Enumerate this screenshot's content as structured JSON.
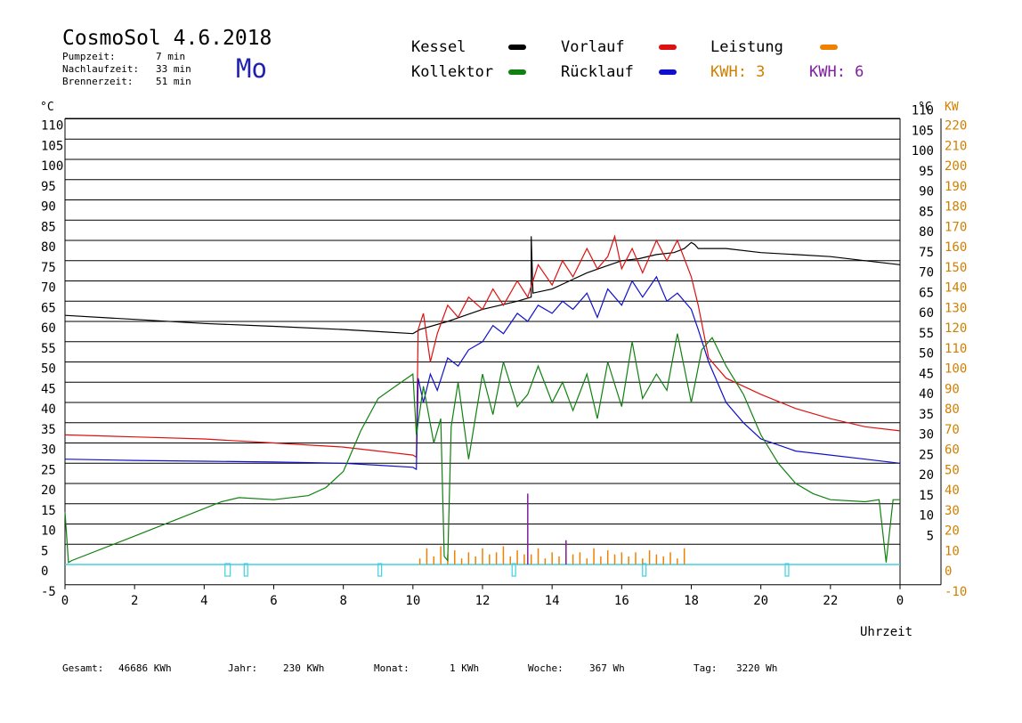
{
  "header": {
    "title": "CosmoSol 4.6.2018",
    "day": "Mo",
    "pump_label": "Pumpzeit:",
    "pump_value": "7 min",
    "nachlauf_label": "Nachlaufzeit:",
    "nachlauf_value": "33 min",
    "brenner_label": "Brennerzeit:",
    "brenner_value": "51 min"
  },
  "legend": {
    "kessel": "Kessel",
    "vorlauf": "Vorlauf",
    "leistung": "Leistung",
    "kollektor": "Kollektor",
    "ruecklauf": "Rücklauf",
    "kwh1": "KWH: 3",
    "kwh2": "KWH: 6",
    "colors": {
      "kessel": "#000000",
      "vorlauf": "#dd1111",
      "leistung": "#f08000",
      "kollektor": "#108010",
      "ruecklauf": "#1010cc",
      "kwh1": "#d08000",
      "kwh2": "#8020a0",
      "pump": "#40d0e0"
    }
  },
  "chart_data": {
    "type": "line",
    "title": "CosmoSol 4.6.2018",
    "xlabel": "Uhrzeit",
    "ylabel_left": "°C",
    "ylabel_right_1": "°C",
    "ylabel_right_2": "KW",
    "xlim": [
      0,
      24
    ],
    "ylim": [
      -5,
      110
    ],
    "x_ticks": [
      "0",
      "2",
      "4",
      "6",
      "8",
      "10",
      "12",
      "14",
      "16",
      "18",
      "20",
      "22",
      "0"
    ],
    "y_ticks_left": [
      "-5",
      "0",
      "5",
      "10",
      "15",
      "20",
      "25",
      "30",
      "35",
      "40",
      "45",
      "50",
      "55",
      "60",
      "65",
      "70",
      "75",
      "80",
      "85",
      "90",
      "95",
      "100",
      "105",
      "110"
    ],
    "y_ticks_right": [
      "5",
      "10",
      "15",
      "20",
      "25",
      "30",
      "35",
      "40",
      "45",
      "50",
      "55",
      "60",
      "65",
      "70",
      "75",
      "80",
      "85",
      "90",
      "95",
      "100",
      "105",
      "110"
    ],
    "y_ticks_kw": [
      "-10",
      "0",
      "10",
      "20",
      "30",
      "40",
      "50",
      "60",
      "70",
      "80",
      "90",
      "100",
      "110",
      "120",
      "130",
      "140",
      "150",
      "160",
      "170",
      "180",
      "190",
      "200",
      "210",
      "220"
    ],
    "grid": true,
    "series": [
      {
        "name": "Kessel",
        "color": "#000000",
        "x": [
          0,
          2,
          4,
          6,
          8,
          9,
          10,
          10.2,
          11,
          12,
          13,
          13.4,
          13.4,
          13.45,
          14,
          14.5,
          15,
          15.5,
          16,
          16.5,
          17,
          17.5,
          17.8,
          18,
          18.1,
          18.2,
          19,
          20,
          21,
          22,
          23,
          24
        ],
        "y": [
          61.5,
          60.5,
          59.5,
          58.8,
          58,
          57.5,
          57,
          58,
          60,
          63,
          65,
          66,
          81,
          67,
          68,
          70,
          72,
          73.5,
          75,
          75.5,
          76.5,
          77,
          78,
          79.5,
          79,
          78,
          78,
          77,
          76.5,
          76,
          75,
          74
        ]
      },
      {
        "name": "Vorlauf",
        "color": "#dd1111",
        "x": [
          0,
          2,
          4,
          6,
          8,
          9,
          10,
          10.1,
          10.15,
          10.3,
          10.5,
          10.7,
          11,
          11.3,
          11.6,
          12,
          12.3,
          12.6,
          13,
          13.3,
          13.6,
          14,
          14.3,
          14.6,
          15,
          15.3,
          15.6,
          15.8,
          16,
          16.3,
          16.6,
          17,
          17.3,
          17.6,
          18,
          18.2,
          18.5,
          19,
          20,
          21,
          22,
          23,
          24
        ],
        "y": [
          32,
          31.5,
          31,
          30,
          29,
          28,
          27,
          26.5,
          58,
          62,
          50,
          57,
          64,
          61,
          66,
          63,
          68,
          64,
          70,
          66,
          74,
          69,
          75,
          71,
          78,
          73,
          76,
          81,
          73,
          78,
          72,
          80,
          75,
          80,
          71,
          64,
          51,
          46,
          42,
          38.5,
          36,
          34,
          33
        ]
      },
      {
        "name": "Rücklauf",
        "color": "#1010cc",
        "x": [
          0,
          2,
          4,
          6,
          8,
          9,
          10,
          10.1,
          10.15,
          10.3,
          10.5,
          10.7,
          11,
          11.3,
          11.6,
          12,
          12.3,
          12.6,
          13,
          13.3,
          13.6,
          14,
          14.3,
          14.6,
          15,
          15.3,
          15.6,
          16,
          16.3,
          16.6,
          17,
          17.3,
          17.6,
          18,
          18.2,
          18.5,
          19,
          19.5,
          20,
          21,
          22,
          23,
          24
        ],
        "y": [
          26,
          25.7,
          25.5,
          25.3,
          25,
          24.5,
          24,
          23.5,
          46,
          40,
          47,
          43,
          51,
          49,
          53,
          55,
          59,
          57,
          62,
          60,
          64,
          62,
          65,
          63,
          67,
          61,
          68,
          64,
          70,
          66,
          71,
          65,
          67,
          63,
          58,
          50,
          40,
          35,
          31,
          28,
          27,
          26,
          25
        ]
      },
      {
        "name": "Kollektor",
        "color": "#108010",
        "x": [
          0,
          0.1,
          0.2,
          2,
          4.5,
          5,
          6,
          7,
          7.5,
          8,
          8.5,
          9,
          9.5,
          10,
          10.1,
          10.3,
          10.6,
          10.8,
          10.9,
          11,
          11.1,
          11.3,
          11.6,
          12,
          12.3,
          12.6,
          13,
          13.3,
          13.6,
          14,
          14.3,
          14.6,
          15,
          15.3,
          15.6,
          16,
          16.3,
          16.6,
          17,
          17.3,
          17.6,
          18,
          18.3,
          18.6,
          19,
          19.5,
          20,
          20.5,
          21,
          21.5,
          22,
          23,
          23.4,
          23.6,
          23.8,
          24
        ],
        "y": [
          13,
          0.5,
          1,
          7,
          15.5,
          16.5,
          16,
          17,
          19,
          23,
          33,
          41,
          44,
          47,
          32,
          44,
          30,
          36,
          2,
          1,
          34,
          45,
          26,
          47,
          37,
          50,
          39,
          42,
          49,
          40,
          45,
          38,
          47,
          36,
          50,
          39,
          55,
          41,
          47,
          43,
          57,
          40,
          53,
          56,
          49,
          42,
          32,
          25,
          20,
          17.5,
          16,
          15.5,
          16,
          0.5,
          16,
          16
        ]
      }
    ],
    "pump_on_intervals": [
      [
        4.6,
        4.75
      ],
      [
        5.15,
        5.25
      ],
      [
        9.0,
        9.1
      ],
      [
        12.85,
        12.95
      ],
      [
        16.6,
        16.7
      ],
      [
        20.7,
        20.8
      ]
    ],
    "power_kw": {
      "x": [
        10.2,
        10.4,
        10.6,
        10.8,
        11.0,
        11.2,
        11.4,
        11.6,
        11.8,
        12.0,
        12.2,
        12.4,
        12.6,
        12.8,
        13.0,
        13.2,
        13.4,
        13.6,
        13.8,
        14.0,
        14.2,
        14.4,
        14.6,
        14.8,
        15.0,
        15.2,
        15.4,
        15.6,
        15.8,
        16.0,
        16.2,
        16.4,
        16.6,
        16.8,
        17.0,
        17.2,
        17.4,
        17.6,
        17.8
      ],
      "y": [
        3,
        8,
        4,
        9,
        5,
        7,
        3,
        6,
        4,
        8,
        5,
        6,
        9,
        4,
        7,
        5,
        5,
        8,
        3,
        6,
        4,
        7,
        5,
        6,
        3,
        8,
        4,
        7,
        5,
        6,
        4,
        6,
        3,
        7,
        5,
        4,
        6,
        3,
        8
      ]
    },
    "power_kwh_spikes": {
      "x": [
        13.3,
        14.4
      ],
      "y": [
        35,
        12
      ]
    }
  },
  "footer": {
    "gesamt_label": "Gesamt:",
    "gesamt_value": "46686 KWh",
    "jahr_label": "Jahr:",
    "jahr_value": "230 KWh",
    "monat_label": "Monat:",
    "monat_value": "1 KWh",
    "woche_label": "Woche:",
    "woche_value": "367 Wh",
    "tag_label": "Tag:",
    "tag_value": "3220 Wh"
  }
}
